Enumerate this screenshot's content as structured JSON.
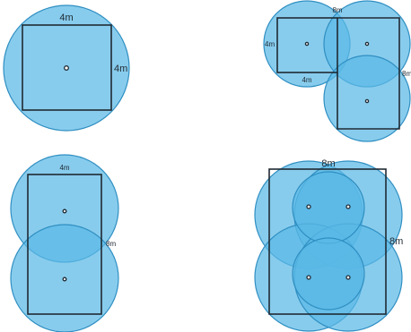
{
  "colors": {
    "circle_fill": "#5ab9e6",
    "circle_stroke": "#2f8fc2",
    "square_stroke": "#1f2a33",
    "background": "#ffffff"
  },
  "diagrams": [
    {
      "label_top": "4m",
      "label_right": "4m"
    },
    {
      "label_top": "8m",
      "label_left": "4m",
      "label_bottom": "4m",
      "label_right": "8m"
    },
    {
      "label_top": "4m",
      "label_right": "8m"
    },
    {
      "label_top": "8m",
      "label_right": "8m"
    }
  ]
}
